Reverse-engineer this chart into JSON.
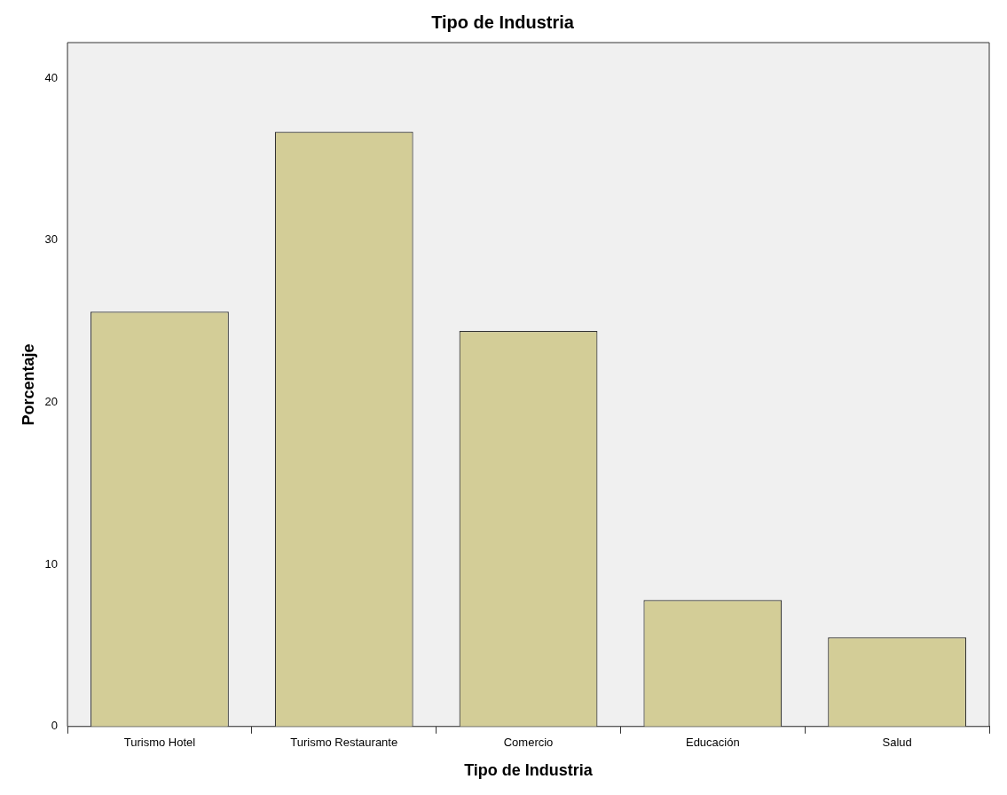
{
  "chart_data": {
    "type": "bar",
    "title": "Tipo de Industria",
    "xlabel": "Tipo de Industria",
    "ylabel": "Porcentaje",
    "categories": [
      "Turismo Hotel",
      "Turismo Restaurante",
      "Comercio",
      "Educación",
      "Salud"
    ],
    "values": [
      25.6,
      36.7,
      24.4,
      7.8,
      5.5
    ],
    "color": "#d3cd97",
    "ylim": [
      0,
      42.2
    ],
    "yticks": [
      0,
      10,
      20,
      30,
      40
    ],
    "grid": false,
    "legend": false
  }
}
